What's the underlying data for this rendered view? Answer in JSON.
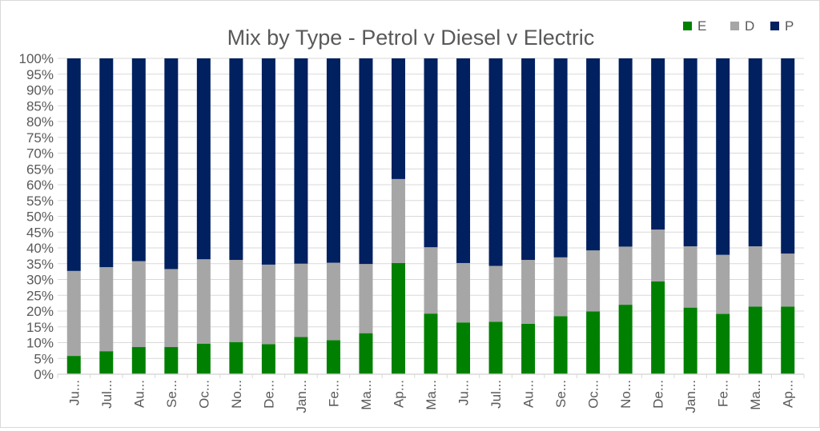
{
  "chart_data": {
    "type": "bar",
    "stacked": true,
    "normalized": true,
    "title": "Mix by Type - Petrol v Diesel v Electric",
    "categories": [
      "Ju...",
      "Jul...",
      "Au...",
      "Se...",
      "Oc...",
      "No...",
      "De...",
      "Jan...",
      "Fe...",
      "Ma...",
      "Ap...",
      "Ma...",
      "Ju...",
      "Jul...",
      "Au...",
      "Se...",
      "Oc...",
      "No...",
      "De...",
      "Jan...",
      "Fe...",
      "Ma...",
      "Ap..."
    ],
    "series": [
      {
        "name": "E",
        "color": "#008000",
        "values": [
          5.8,
          7.3,
          8.6,
          8.6,
          9.7,
          10.2,
          9.5,
          11.8,
          10.8,
          13.0,
          35.2,
          19.2,
          16.4,
          16.6,
          16.0,
          18.4,
          19.9,
          22.0,
          29.4,
          21.1,
          19.1,
          21.4,
          21.4
        ]
      },
      {
        "name": "D",
        "color": "#a6a6a6",
        "values": [
          26.9,
          26.6,
          27.2,
          24.7,
          26.7,
          26.0,
          25.2,
          23.2,
          24.5,
          21.9,
          26.6,
          21.0,
          18.8,
          17.7,
          20.2,
          18.6,
          19.3,
          18.4,
          16.4,
          19.4,
          18.7,
          19.1,
          16.8
        ]
      },
      {
        "name": "P",
        "color": "#002060",
        "values": [
          67.3,
          66.1,
          64.2,
          66.7,
          63.6,
          63.8,
          65.3,
          65.0,
          64.7,
          65.1,
          38.2,
          59.8,
          64.8,
          65.7,
          63.8,
          63.0,
          60.8,
          59.6,
          54.2,
          59.5,
          62.2,
          59.5,
          61.8
        ]
      }
    ],
    "ylim": [
      0,
      100
    ],
    "ytick_step": 5,
    "ytick_suffix": "%",
    "grid": true,
    "legend_position": "top-right",
    "xtick_rotation": "vertical",
    "axis_color": "#595959",
    "grid_color": "#d9d9d9"
  }
}
